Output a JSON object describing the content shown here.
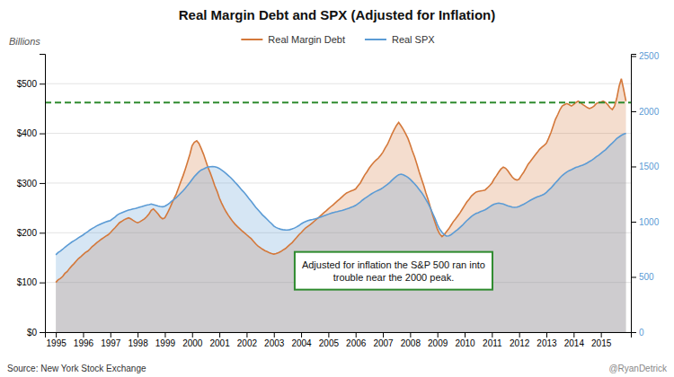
{
  "chart_data": {
    "type": "area",
    "title": "Real Margin Debt and SPX (Adjusted for Inflation)",
    "ylabel": "Billions",
    "annotations": [
      {
        "text": "Adjusted for inflation the S&P 500 ran into\ntrouble near the 2000 peak.",
        "color": "#2e8b2e"
      },
      {
        "text": "Source:  New York Stock Exchange"
      },
      {
        "text": "@RyanDetrick"
      }
    ],
    "reference_line": {
      "value": 462,
      "color": "#2e8b2e",
      "line_style": "dashed"
    },
    "grid": true,
    "legend": "top",
    "xlim": [
      1994.6,
      2016.1
    ],
    "xticks": [
      1995,
      1996,
      1997,
      1998,
      1999,
      2000,
      2001,
      2002,
      2003,
      2004,
      2005,
      2006,
      2007,
      2008,
      2009,
      2010,
      2011,
      2012,
      2013,
      2014,
      2015
    ],
    "ylim": [
      0,
      560
    ],
    "yticks": [
      {
        "value": 0,
        "label": "$0"
      },
      {
        "value": 100,
        "label": "$100"
      },
      {
        "value": 200,
        "label": "$200"
      },
      {
        "value": 300,
        "label": "$300"
      },
      {
        "value": 400,
        "label": "$400"
      },
      {
        "value": 500,
        "label": "$500"
      }
    ],
    "y2lim": [
      0,
      2520
    ],
    "y2ticks": [
      0,
      500,
      1000,
      1500,
      2000,
      2500
    ],
    "x": [
      1995.0,
      1995.08,
      1995.17,
      1995.25,
      1995.33,
      1995.42,
      1995.5,
      1995.58,
      1995.67,
      1995.75,
      1995.83,
      1995.92,
      1996.0,
      1996.08,
      1996.17,
      1996.25,
      1996.33,
      1996.42,
      1996.5,
      1996.58,
      1996.67,
      1996.75,
      1996.83,
      1996.92,
      1997.0,
      1997.08,
      1997.17,
      1997.25,
      1997.33,
      1997.42,
      1997.5,
      1997.58,
      1997.67,
      1997.75,
      1997.83,
      1997.92,
      1998.0,
      1998.08,
      1998.17,
      1998.25,
      1998.33,
      1998.42,
      1998.5,
      1998.58,
      1998.67,
      1998.75,
      1998.83,
      1998.92,
      1999.0,
      1999.08,
      1999.17,
      1999.25,
      1999.33,
      1999.42,
      1999.5,
      1999.58,
      1999.67,
      1999.75,
      1999.83,
      1999.92,
      2000.0,
      2000.08,
      2000.17,
      2000.25,
      2000.33,
      2000.42,
      2000.5,
      2000.58,
      2000.67,
      2000.75,
      2000.83,
      2000.92,
      2001.0,
      2001.08,
      2001.17,
      2001.25,
      2001.33,
      2001.42,
      2001.5,
      2001.58,
      2001.67,
      2001.75,
      2001.83,
      2001.92,
      2002.0,
      2002.08,
      2002.17,
      2002.25,
      2002.33,
      2002.42,
      2002.5,
      2002.58,
      2002.67,
      2002.75,
      2002.83,
      2002.92,
      2003.0,
      2003.08,
      2003.17,
      2003.25,
      2003.33,
      2003.42,
      2003.5,
      2003.58,
      2003.67,
      2003.75,
      2003.83,
      2003.92,
      2004.0,
      2004.08,
      2004.17,
      2004.25,
      2004.33,
      2004.42,
      2004.5,
      2004.58,
      2004.67,
      2004.75,
      2004.83,
      2004.92,
      2005.0,
      2005.08,
      2005.17,
      2005.25,
      2005.33,
      2005.42,
      2005.5,
      2005.58,
      2005.67,
      2005.75,
      2005.83,
      2005.92,
      2006.0,
      2006.08,
      2006.17,
      2006.25,
      2006.33,
      2006.42,
      2006.5,
      2006.58,
      2006.67,
      2006.75,
      2006.83,
      2006.92,
      2007.0,
      2007.08,
      2007.17,
      2007.25,
      2007.33,
      2007.42,
      2007.5,
      2007.58,
      2007.67,
      2007.75,
      2007.83,
      2007.92,
      2008.0,
      2008.08,
      2008.17,
      2008.25,
      2008.33,
      2008.42,
      2008.5,
      2008.58,
      2008.67,
      2008.75,
      2008.83,
      2008.92,
      2009.0,
      2009.08,
      2009.17,
      2009.25,
      2009.33,
      2009.42,
      2009.5,
      2009.58,
      2009.67,
      2009.75,
      2009.83,
      2009.92,
      2010.0,
      2010.08,
      2010.17,
      2010.25,
      2010.33,
      2010.42,
      2010.5,
      2010.58,
      2010.67,
      2010.75,
      2010.83,
      2010.92,
      2011.0,
      2011.08,
      2011.17,
      2011.25,
      2011.33,
      2011.42,
      2011.5,
      2011.58,
      2011.67,
      2011.75,
      2011.83,
      2011.92,
      2012.0,
      2012.08,
      2012.17,
      2012.25,
      2012.33,
      2012.42,
      2012.5,
      2012.58,
      2012.67,
      2012.75,
      2012.83,
      2012.92,
      2013.0,
      2013.08,
      2013.17,
      2013.25,
      2013.33,
      2013.42,
      2013.5,
      2013.58,
      2013.67,
      2013.75,
      2013.83,
      2013.92,
      2014.0,
      2014.08,
      2014.17,
      2014.25,
      2014.33,
      2014.42,
      2014.5,
      2014.58,
      2014.67,
      2014.75,
      2014.83,
      2014.92,
      2015.0,
      2015.08,
      2015.17,
      2015.25,
      2015.33,
      2015.42,
      2015.5,
      2015.58,
      2015.67,
      2015.75,
      2015.83,
      2015.92
    ],
    "series": [
      {
        "name": "Real Margin Debt",
        "color": "#d4783a",
        "values": [
          100,
          105,
          108,
          112,
          118,
          122,
          128,
          133,
          138,
          143,
          148,
          152,
          156,
          160,
          163,
          167,
          172,
          176,
          180,
          183,
          187,
          190,
          193,
          196,
          200,
          205,
          210,
          215,
          220,
          223,
          226,
          228,
          230,
          228,
          225,
          222,
          220,
          222,
          225,
          228,
          232,
          238,
          245,
          248,
          243,
          238,
          232,
          228,
          230,
          238,
          248,
          258,
          268,
          278,
          290,
          302,
          315,
          328,
          342,
          358,
          375,
          382,
          385,
          380,
          370,
          358,
          345,
          332,
          320,
          308,
          295,
          283,
          270,
          260,
          250,
          242,
          235,
          228,
          222,
          217,
          212,
          208,
          204,
          200,
          196,
          192,
          188,
          183,
          178,
          173,
          170,
          167,
          164,
          162,
          160,
          158,
          157,
          158,
          160,
          162,
          165,
          168,
          172,
          176,
          180,
          185,
          190,
          196,
          200,
          205,
          210,
          213,
          216,
          220,
          224,
          228,
          232,
          236,
          240,
          244,
          248,
          252,
          256,
          260,
          264,
          268,
          272,
          276,
          280,
          282,
          284,
          286,
          288,
          294,
          300,
          308,
          316,
          323,
          330,
          336,
          342,
          346,
          350,
          356,
          362,
          370,
          378,
          388,
          398,
          408,
          416,
          422,
          415,
          408,
          400,
          390,
          378,
          365,
          352,
          338,
          323,
          308,
          295,
          280,
          265,
          250,
          235,
          220,
          207,
          198,
          192,
          196,
          202,
          208,
          215,
          222,
          228,
          234,
          240,
          248,
          255,
          262,
          268,
          274,
          278,
          282,
          283,
          284,
          285,
          286,
          290,
          295,
          300,
          308,
          315,
          322,
          328,
          332,
          330,
          325,
          318,
          312,
          308,
          306,
          308,
          315,
          322,
          330,
          338,
          344,
          350,
          356,
          362,
          368,
          372,
          376,
          380,
          390,
          402,
          415,
          428,
          438,
          448,
          455,
          458,
          460,
          458,
          455,
          458,
          462,
          465,
          462,
          458,
          455,
          452,
          450,
          452,
          455,
          460,
          462,
          463,
          465,
          462,
          458,
          452,
          448,
          455,
          470,
          495,
          510,
          490,
          465
        ]
      },
      {
        "name": "Real SPX",
        "color": "#5b9bd5",
        "axis": "y2",
        "values": [
          700,
          720,
          735,
          750,
          768,
          785,
          800,
          815,
          828,
          840,
          855,
          868,
          880,
          895,
          910,
          925,
          938,
          950,
          962,
          972,
          982,
          990,
          998,
          1005,
          1010,
          1025,
          1042,
          1060,
          1072,
          1082,
          1090,
          1098,
          1105,
          1110,
          1115,
          1120,
          1125,
          1132,
          1138,
          1145,
          1150,
          1155,
          1160,
          1155,
          1148,
          1142,
          1138,
          1135,
          1140,
          1152,
          1168,
          1185,
          1200,
          1218,
          1238,
          1258,
          1280,
          1302,
          1328,
          1355,
          1382,
          1408,
          1432,
          1452,
          1468,
          1478,
          1488,
          1495,
          1498,
          1500,
          1498,
          1492,
          1482,
          1468,
          1452,
          1436,
          1418,
          1398,
          1378,
          1355,
          1332,
          1308,
          1285,
          1262,
          1238,
          1212,
          1185,
          1158,
          1132,
          1108,
          1085,
          1062,
          1042,
          1022,
          1002,
          982,
          960,
          948,
          938,
          932,
          928,
          926,
          925,
          928,
          934,
          942,
          952,
          965,
          980,
          992,
          1002,
          1010,
          1015,
          1020,
          1025,
          1030,
          1038,
          1045,
          1052,
          1060,
          1068,
          1076,
          1082,
          1088,
          1092,
          1098,
          1102,
          1108,
          1115,
          1122,
          1130,
          1138,
          1148,
          1162,
          1178,
          1195,
          1210,
          1225,
          1238,
          1252,
          1265,
          1275,
          1285,
          1295,
          1308,
          1322,
          1338,
          1355,
          1375,
          1395,
          1412,
          1425,
          1430,
          1425,
          1415,
          1402,
          1385,
          1365,
          1342,
          1318,
          1292,
          1265,
          1235,
          1200,
          1162,
          1120,
          1075,
          1025,
          975,
          935,
          905,
          882,
          870,
          872,
          882,
          898,
          915,
          930,
          948,
          968,
          990,
          1010,
          1030,
          1048,
          1062,
          1075,
          1082,
          1092,
          1100,
          1108,
          1120,
          1135,
          1148,
          1158,
          1165,
          1168,
          1165,
          1160,
          1152,
          1145,
          1138,
          1132,
          1130,
          1132,
          1138,
          1148,
          1158,
          1170,
          1182,
          1195,
          1205,
          1215,
          1225,
          1232,
          1240,
          1250,
          1265,
          1285,
          1305,
          1328,
          1352,
          1375,
          1398,
          1418,
          1435,
          1450,
          1462,
          1472,
          1482,
          1492,
          1498,
          1505,
          1512,
          1522,
          1532,
          1545,
          1558,
          1572,
          1588,
          1602,
          1618,
          1635,
          1652,
          1672,
          1692,
          1712,
          1732,
          1752,
          1768,
          1782,
          1792,
          1800
        ]
      }
    ]
  }
}
